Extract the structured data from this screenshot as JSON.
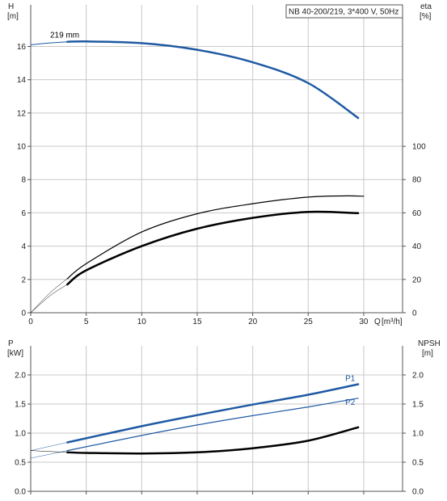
{
  "colors": {
    "blue": "#1f5aa3",
    "black": "#000000",
    "grid": "#c8c8c8",
    "axis": "#555555"
  },
  "chart_data": [
    {
      "type": "line",
      "name": "head-efficiency",
      "title": "NB 40-200/219, 3*400 V, 50Hz",
      "xlabel": "Q",
      "xunit": "[m³/h]",
      "xlim": [
        0,
        33.5
      ],
      "xticks": [
        0,
        5,
        10,
        15,
        20,
        25,
        30
      ],
      "ylabel": "H",
      "yunit": "[m]",
      "ylim": [
        0,
        18.5
      ],
      "yticks": [
        0,
        2,
        4,
        6,
        8,
        10,
        12,
        14,
        16
      ],
      "y2label": "eta",
      "y2unit": "[%]",
      "y2lim": [
        0,
        185
      ],
      "y2ticks": [
        0,
        20,
        40,
        60,
        80,
        100
      ],
      "grid": true,
      "legend_position": "top-right",
      "series": [
        {
          "name": "219 mm",
          "axis": "left",
          "color": "#1f5aa3",
          "width": 2.5,
          "x": [
            3.3,
            5,
            10,
            15,
            20,
            25,
            29.5
          ],
          "y": [
            16.28,
            16.3,
            16.2,
            15.8,
            15.05,
            13.8,
            11.7
          ]
        },
        {
          "name": "",
          "axis": "left",
          "color": "#1f5aa3",
          "width": 1,
          "x": [
            0,
            1.5,
            3.3
          ],
          "y": [
            16.1,
            16.2,
            16.28
          ]
        },
        {
          "name": "",
          "axis": "right",
          "color": "#000000",
          "width": 1.2,
          "x": [
            3.3,
            5,
            10,
            15,
            20,
            25,
            28.5,
            30
          ],
          "y": [
            20.5,
            29.5,
            48.5,
            59.5,
            65.5,
            69.5,
            70.2,
            70
          ]
        },
        {
          "name": "",
          "axis": "right",
          "color": "#000000",
          "width": 2.5,
          "x": [
            3.3,
            5,
            10,
            15,
            20,
            25,
            29.5
          ],
          "y": [
            17,
            25.5,
            40,
            50.5,
            57,
            60.6,
            59.8
          ]
        },
        {
          "name": "",
          "axis": "right",
          "color": "#000000",
          "width": 0.5,
          "x": [
            0,
            1,
            2,
            3.3
          ],
          "y": [
            0,
            6,
            11.5,
            17
          ]
        },
        {
          "name": "",
          "axis": "right",
          "color": "#000000",
          "width": 0.5,
          "x": [
            0,
            1,
            2,
            3.3
          ],
          "y": [
            0,
            7,
            13.5,
            20.5
          ]
        }
      ]
    },
    {
      "type": "line",
      "name": "power-npsh",
      "xlim": [
        0,
        33.5
      ],
      "ylabel": "P",
      "yunit": "[kW]",
      "ylim": [
        0,
        2.5
      ],
      "yticks": [
        0.0,
        0.5,
        1.0,
        1.5,
        2.0
      ],
      "y2label": "NPSH",
      "y2unit": "[m]",
      "y2lim": [
        0,
        2.5
      ],
      "y2ticks": [
        0.0,
        0.5,
        1.0,
        1.5,
        2.0
      ],
      "grid": true,
      "series": [
        {
          "name": "P1",
          "axis": "left",
          "color": "#1f5aa3",
          "width": 2.5,
          "x": [
            3.3,
            10,
            15,
            20,
            25,
            29.5
          ],
          "y": [
            0.84,
            1.12,
            1.31,
            1.49,
            1.66,
            1.84
          ]
        },
        {
          "name": "P2",
          "axis": "left",
          "color": "#1f5aa3",
          "width": 1.2,
          "x": [
            3.3,
            10,
            15,
            20,
            25,
            29.5
          ],
          "y": [
            0.7,
            0.96,
            1.14,
            1.3,
            1.45,
            1.6
          ]
        },
        {
          "name": "",
          "axis": "right",
          "color": "#000000",
          "width": 2.5,
          "x": [
            3.3,
            5,
            10,
            15,
            20,
            25,
            29.5
          ],
          "y": [
            0.67,
            0.66,
            0.65,
            0.67,
            0.74,
            0.87,
            1.1
          ]
        },
        {
          "name": "",
          "axis": "left",
          "color": "#1f5aa3",
          "width": 0.5,
          "x": [
            0,
            3.3
          ],
          "y": [
            0.57,
            0.7
          ]
        },
        {
          "name": "",
          "axis": "left",
          "color": "#1f5aa3",
          "width": 0.5,
          "x": [
            0,
            3.3
          ],
          "y": [
            0.7,
            0.84
          ]
        },
        {
          "name": "",
          "axis": "right",
          "color": "#000000",
          "width": 0.5,
          "x": [
            0,
            3.3
          ],
          "y": [
            0.7,
            0.67
          ]
        }
      ]
    }
  ]
}
